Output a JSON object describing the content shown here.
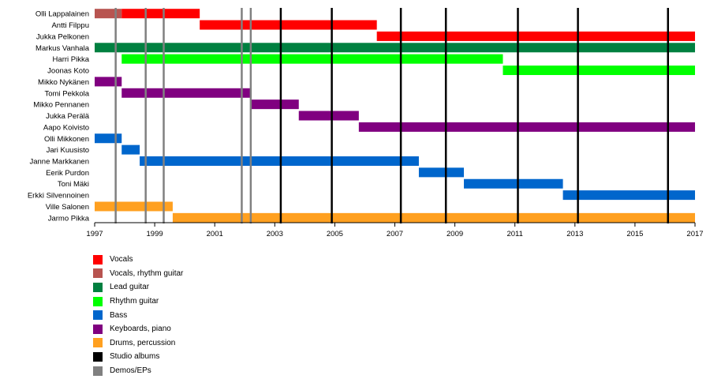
{
  "chart_data": {
    "type": "timeline",
    "x_range": [
      1997.0,
      2017.0
    ],
    "x_ticks": [
      1997,
      1999,
      2001,
      2003,
      2005,
      2007,
      2009,
      2011,
      2013,
      2015,
      2017
    ],
    "members": [
      "Olli Lappalainen",
      "Antti Filppu",
      "Jukka Pelkonen",
      "Markus Vanhala",
      "Harri Pikka",
      "Joonas Koto",
      "Mikko Nykänen",
      "Tomi Pekkola",
      "Mikko Pennanen",
      "Jukka Perälä",
      "Aapo Koivisto",
      "Olli Mikkonen",
      "Jari Kuusisto",
      "Janne Markkanen",
      "Eerik Purdon",
      "Toni Mäki",
      "Erkki Silvennoinen",
      "Ville Salonen",
      "Jarmo Pikka"
    ],
    "roles": {
      "vocals": {
        "label": "Vocals",
        "color": "#ff0000"
      },
      "vocals_rhythm": {
        "label": "Vocals, rhythm guitar",
        "color": "#b85450"
      },
      "lead": {
        "label": "Lead guitar",
        "color": "#008040"
      },
      "rhythm": {
        "label": "Rhythm guitar",
        "color": "#00ff00"
      },
      "bass": {
        "label": "Bass",
        "color": "#0066cc"
      },
      "keys": {
        "label": "Keyboards, piano",
        "color": "#800080"
      },
      "drums": {
        "label": "Drums, percussion",
        "color": "#ffa020"
      }
    },
    "bars": [
      {
        "member": "Olli Lappalainen",
        "role": "vocals_rhythm",
        "start": 1997.0,
        "end": 1997.9
      },
      {
        "member": "Olli Lappalainen",
        "role": "vocals",
        "start": 1997.9,
        "end": 2000.5
      },
      {
        "member": "Antti Filppu",
        "role": "vocals",
        "start": 2000.5,
        "end": 2006.4
      },
      {
        "member": "Jukka Pelkonen",
        "role": "vocals",
        "start": 2006.4,
        "end": 2017.0
      },
      {
        "member": "Markus Vanhala",
        "role": "lead",
        "start": 1997.0,
        "end": 2017.0
      },
      {
        "member": "Harri Pikka",
        "role": "rhythm",
        "start": 1997.9,
        "end": 2010.6
      },
      {
        "member": "Joonas Koto",
        "role": "rhythm",
        "start": 2010.6,
        "end": 2017.0
      },
      {
        "member": "Mikko Nykänen",
        "role": "keys",
        "start": 1997.0,
        "end": 1997.9
      },
      {
        "member": "Tomi Pekkola",
        "role": "keys",
        "start": 1997.9,
        "end": 2002.2
      },
      {
        "member": "Mikko Pennanen",
        "role": "keys",
        "start": 2002.2,
        "end": 2003.8
      },
      {
        "member": "Jukka Perälä",
        "role": "keys",
        "start": 2003.8,
        "end": 2005.8
      },
      {
        "member": "Aapo Koivisto",
        "role": "keys",
        "start": 2005.8,
        "end": 2017.0
      },
      {
        "member": "Olli Mikkonen",
        "role": "bass",
        "start": 1997.0,
        "end": 1997.9
      },
      {
        "member": "Jari Kuusisto",
        "role": "bass",
        "start": 1997.9,
        "end": 1998.5
      },
      {
        "member": "Janne Markkanen",
        "role": "bass",
        "start": 1998.5,
        "end": 2007.8
      },
      {
        "member": "Eerik Purdon",
        "role": "bass",
        "start": 2007.8,
        "end": 2009.3
      },
      {
        "member": "Toni Mäki",
        "role": "bass",
        "start": 2009.3,
        "end": 2012.6
      },
      {
        "member": "Erkki Silvennoinen",
        "role": "bass",
        "start": 2012.6,
        "end": 2017.0
      },
      {
        "member": "Ville Salonen",
        "role": "drums",
        "start": 1997.0,
        "end": 1999.6
      },
      {
        "member": "Jarmo Pikka",
        "role": "drums",
        "start": 1999.6,
        "end": 2017.0
      }
    ],
    "studio_albums": [
      2003.2,
      2004.9,
      2007.2,
      2008.7,
      2011.1,
      2013.1,
      2016.1
    ],
    "demos_eps": [
      1997.7,
      1998.7,
      1999.3,
      2001.9,
      2002.2
    ],
    "legend": [
      {
        "label": "Vocals",
        "color": "#ff0000"
      },
      {
        "label": "Vocals, rhythm guitar",
        "color": "#b85450"
      },
      {
        "label": "Lead guitar",
        "color": "#008040"
      },
      {
        "label": "Rhythm guitar",
        "color": "#00ff00"
      },
      {
        "label": "Bass",
        "color": "#0066cc"
      },
      {
        "label": "Keyboards, piano",
        "color": "#800080"
      },
      {
        "label": "Drums, percussion",
        "color": "#ffa020"
      },
      {
        "label": "Studio albums",
        "color": "#000000"
      },
      {
        "label": "Demos/EPs",
        "color": "#808080"
      }
    ]
  }
}
